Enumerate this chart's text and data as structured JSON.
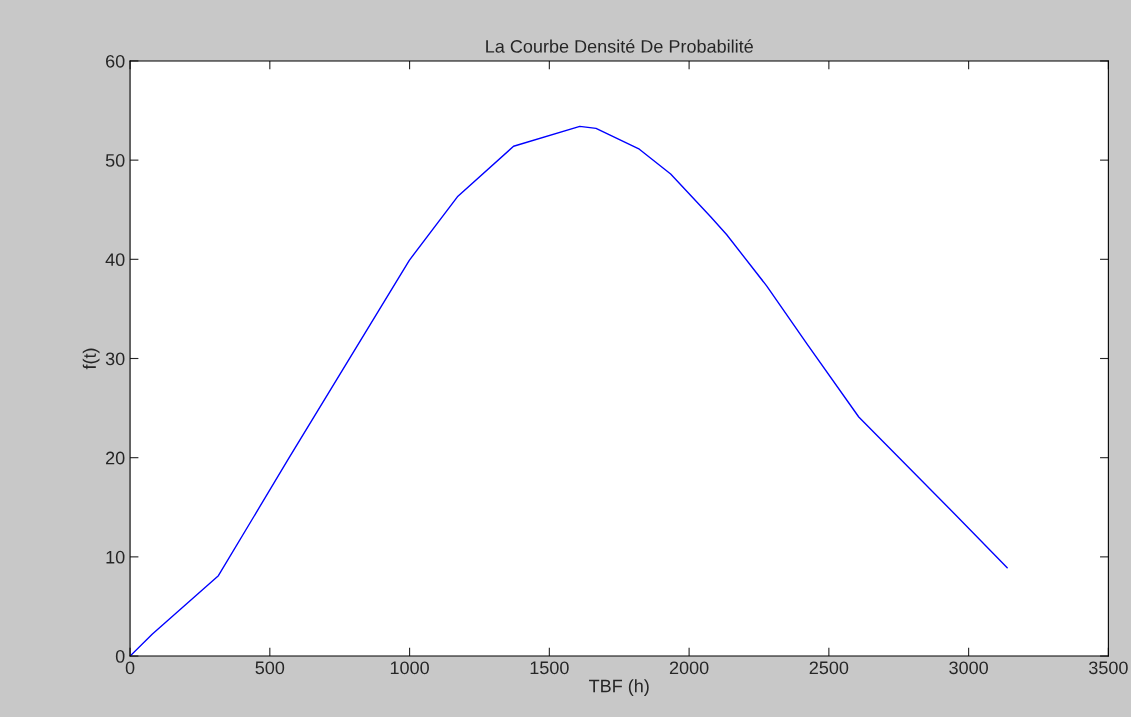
{
  "chart_data": {
    "type": "line",
    "title": "La Courbe Densité De Probabilité",
    "xlabel": "TBF (h)",
    "ylabel": "f(t)",
    "series": [
      {
        "color": "#0000ff",
        "x": [
          0,
          79,
          316,
          567,
          999,
          1171,
          1372,
          1609,
          1667,
          1822,
          1934,
          2077,
          2134,
          2278,
          2421,
          2607,
          2951,
          3138
        ],
        "values": [
          0,
          2.2,
          8.1,
          19.9,
          39.9,
          46.3,
          51.4,
          53.4,
          53.2,
          51.1,
          48.6,
          44.3,
          42.5,
          37.3,
          31.5,
          24.1,
          14.3,
          8.9
        ]
      }
    ],
    "xlim": [
      0,
      3500
    ],
    "xticks": [
      0,
      500,
      1000,
      1500,
      2000,
      2500,
      3000,
      3500
    ],
    "ylim": [
      0,
      60
    ],
    "yticks": [
      0,
      10,
      20,
      30,
      40,
      50,
      60
    ],
    "grid": false,
    "line_style": "solid"
  }
}
